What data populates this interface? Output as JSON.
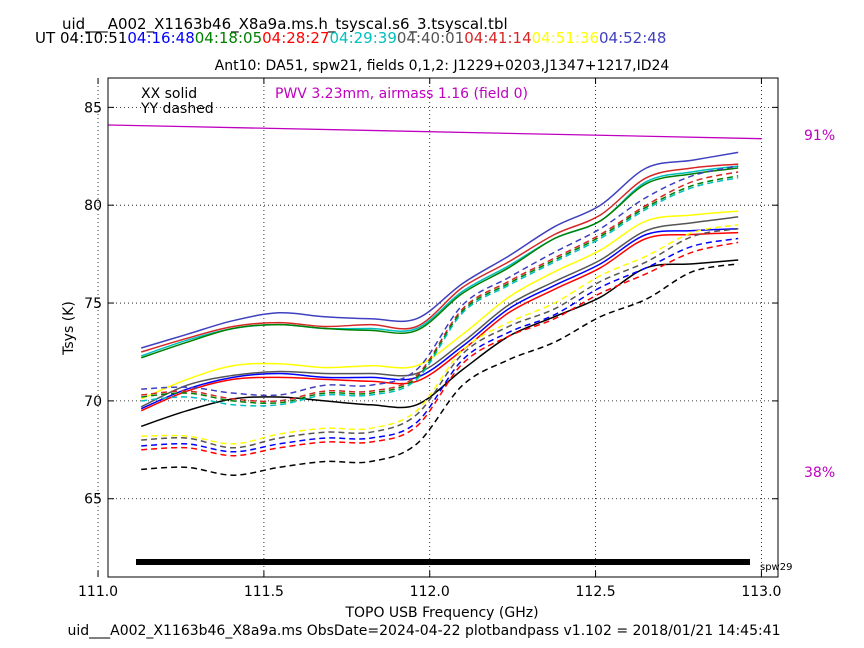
{
  "header": {
    "file_title": "uid___A002_X1163b46_X8a9a.ms.h_tsyscal.s6_3.tsyscal.tbl",
    "ut_label": "UT",
    "ut_times": [
      {
        "text": "04:10:51",
        "color": "#000000"
      },
      {
        "text": "04:16:48",
        "color": "#0000ff"
      },
      {
        "text": "04:18:05",
        "color": "#008000"
      },
      {
        "text": "04:28:27",
        "color": "#ff0000"
      },
      {
        "text": "04:29:39",
        "color": "#00bfbf"
      },
      {
        "text": "04:40:01",
        "color": "#555555"
      },
      {
        "text": "04:41:14",
        "color": "#d62728"
      },
      {
        "text": "04:51:36",
        "color": "#ffff00"
      },
      {
        "text": "04:52:48",
        "color": "#4040c0"
      }
    ],
    "subtitle": "Ant10: DA51,  spw21,  fields 0,1,2: J1229+0203,J1347+1217,ID24"
  },
  "legend": {
    "xx": "XX solid",
    "yy": "YY dashed",
    "pwv": "PWV 3.23mm, airmass 1.16 (field 0)"
  },
  "right_labels": {
    "top": "91%",
    "bottom": "38%"
  },
  "spw_label": "spw29",
  "footer": "uid___A002_X1163b46_X8a9a.ms  ObsDate=2024-04-22   plotbandpass v1.102 = 2018/01/21 14:45:41",
  "chart_data": {
    "type": "line",
    "xlabel": "TOPO USB Frequency (GHz)",
    "ylabel": "Tsys (K)",
    "xlim": [
      111.03,
      113.05
    ],
    "ylim": [
      61.0,
      86.5
    ],
    "xticks": [
      111.0,
      111.5,
      112.0,
      112.5,
      113.0
    ],
    "xtick_labels": [
      "111.0",
      "111.5",
      "112.0",
      "112.5",
      "113.0"
    ],
    "yticks": [
      65,
      70,
      75,
      80,
      85
    ],
    "ytick_labels": [
      "65",
      "70",
      "75",
      "80",
      "85"
    ],
    "grid": true,
    "x_range": [
      111.13,
      112.93
    ],
    "series": [
      {
        "style": "solid",
        "color": "#4040c0",
        "values": [
          72.7,
          73.4,
          74.1,
          74.5,
          74.3,
          74.2,
          74.2,
          76.0,
          77.4,
          78.9,
          80.0,
          81.9,
          82.3,
          82.7
        ]
      },
      {
        "style": "solid",
        "color": "#d62728",
        "values": [
          72.5,
          73.2,
          73.8,
          74.0,
          73.8,
          73.9,
          73.8,
          75.8,
          77.1,
          78.5,
          79.5,
          81.4,
          81.9,
          82.1
        ]
      },
      {
        "style": "solid",
        "color": "#00bfbf",
        "values": [
          72.3,
          73.1,
          73.7,
          73.9,
          73.7,
          73.7,
          73.7,
          75.6,
          76.9,
          78.3,
          79.2,
          81.2,
          81.7,
          82.0
        ]
      },
      {
        "style": "solid",
        "color": "#008000",
        "values": [
          72.2,
          73.0,
          73.7,
          73.9,
          73.7,
          73.6,
          73.6,
          75.5,
          76.8,
          78.3,
          79.2,
          81.1,
          81.6,
          81.9
        ]
      },
      {
        "style": "solid",
        "color": "#ffff00",
        "values": [
          70.1,
          71.1,
          71.8,
          71.9,
          71.7,
          71.8,
          71.8,
          73.4,
          75.3,
          76.6,
          77.7,
          79.2,
          79.5,
          79.7
        ]
      },
      {
        "style": "solid",
        "color": "#555555",
        "values": [
          69.7,
          70.8,
          71.3,
          71.5,
          71.4,
          71.4,
          71.4,
          73.0,
          74.9,
          76.1,
          77.2,
          78.7,
          79.1,
          79.4
        ]
      },
      {
        "style": "solid",
        "color": "#0000ff",
        "values": [
          69.6,
          70.6,
          71.2,
          71.4,
          71.2,
          71.2,
          71.2,
          72.8,
          74.7,
          75.9,
          77.0,
          78.5,
          78.7,
          78.8
        ]
      },
      {
        "style": "solid",
        "color": "#ff0000",
        "values": [
          69.5,
          70.5,
          71.1,
          71.2,
          71.1,
          71.0,
          71.0,
          72.6,
          74.5,
          75.7,
          76.8,
          78.3,
          78.5,
          78.6
        ]
      },
      {
        "style": "solid",
        "color": "#000000",
        "values": [
          68.7,
          69.5,
          70.1,
          70.2,
          70.0,
          69.8,
          69.8,
          71.6,
          73.3,
          74.3,
          75.3,
          76.8,
          77.0,
          77.2
        ]
      },
      {
        "style": "dashed",
        "color": "#4040c0",
        "values": [
          70.6,
          70.7,
          70.4,
          70.3,
          70.8,
          70.8,
          71.6,
          74.9,
          76.3,
          77.6,
          78.8,
          80.4,
          81.5,
          82.0
        ]
      },
      {
        "style": "dashed",
        "color": "#d62728",
        "values": [
          70.3,
          70.5,
          70.1,
          70.0,
          70.5,
          70.5,
          71.3,
          74.7,
          76.1,
          77.3,
          78.5,
          80.0,
          81.2,
          81.7
        ]
      },
      {
        "style": "dashed",
        "color": "#008000",
        "values": [
          70.2,
          70.4,
          70.0,
          69.9,
          70.4,
          70.4,
          71.2,
          74.6,
          76.0,
          77.2,
          78.4,
          79.9,
          81.0,
          81.5
        ]
      },
      {
        "style": "dashed",
        "color": "#00bfbf",
        "values": [
          70.0,
          70.2,
          69.8,
          69.8,
          70.3,
          70.3,
          71.1,
          74.5,
          75.9,
          77.1,
          78.3,
          79.8,
          80.9,
          81.4
        ]
      },
      {
        "style": "dashed",
        "color": "#ffff00",
        "values": [
          68.2,
          68.2,
          67.8,
          68.3,
          68.6,
          68.6,
          69.5,
          72.6,
          74.0,
          75.0,
          76.4,
          77.4,
          78.6,
          79.0
        ]
      },
      {
        "style": "dashed",
        "color": "#555555",
        "values": [
          68.0,
          68.1,
          67.6,
          68.1,
          68.4,
          68.4,
          69.3,
          72.4,
          73.8,
          74.7,
          76.1,
          77.1,
          78.4,
          78.8
        ]
      },
      {
        "style": "dashed",
        "color": "#0000ff",
        "values": [
          67.7,
          67.8,
          67.4,
          67.8,
          68.1,
          68.1,
          68.9,
          72.1,
          73.5,
          74.4,
          75.8,
          76.8,
          77.9,
          78.3
        ]
      },
      {
        "style": "dashed",
        "color": "#ff0000",
        "values": [
          67.5,
          67.6,
          67.2,
          67.6,
          67.9,
          67.9,
          68.7,
          71.9,
          73.3,
          74.2,
          75.5,
          76.5,
          77.6,
          78.1
        ]
      },
      {
        "style": "dashed",
        "color": "#000000",
        "values": [
          66.5,
          66.6,
          66.2,
          66.6,
          66.9,
          66.9,
          67.8,
          70.8,
          72.1,
          73.0,
          74.3,
          75.2,
          76.6,
          77.0
        ]
      }
    ],
    "pwv_series": {
      "color": "#c000c0",
      "x": [
        111.03,
        113.0
      ],
      "values": [
        84.1,
        83.4
      ]
    }
  }
}
